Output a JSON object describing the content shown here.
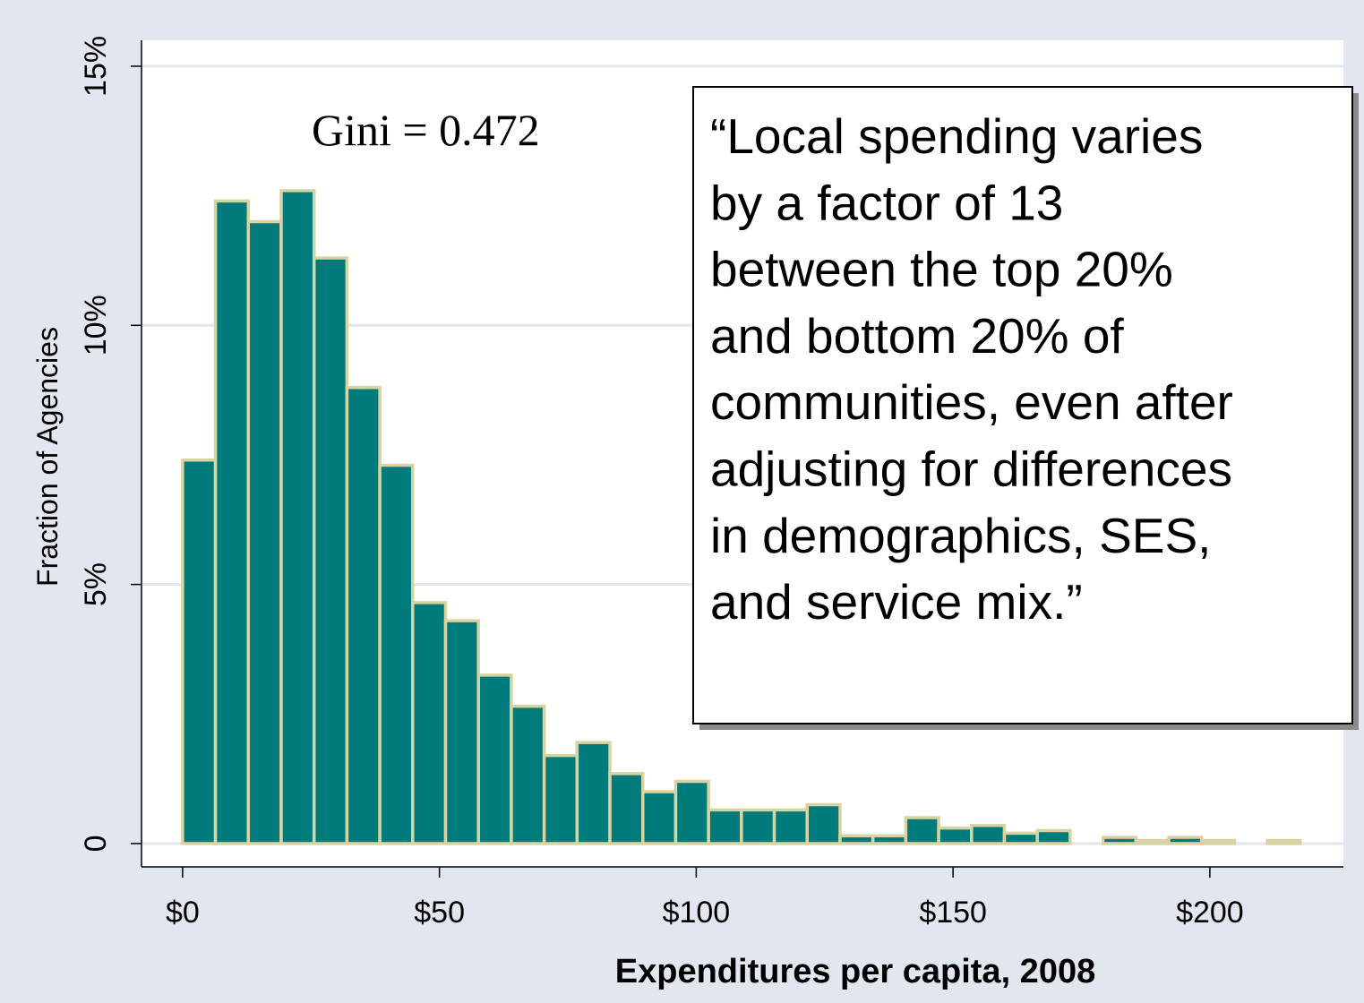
{
  "chart_data": {
    "type": "bar",
    "xlabel": "Expenditures per capita, 2008",
    "ylabel": "Fraction of Agencies",
    "xlim": [
      -8,
      226
    ],
    "ylim": [
      -0.45,
      15.5
    ],
    "x_ticks": [
      {
        "value": 0,
        "label": "$0"
      },
      {
        "value": 50,
        "label": "$50"
      },
      {
        "value": 100,
        "label": "$100"
      },
      {
        "value": 150,
        "label": "$150"
      },
      {
        "value": 200,
        "label": "$200"
      }
    ],
    "y_ticks": [
      {
        "value": 0,
        "label": "0"
      },
      {
        "value": 5,
        "label": "5%"
      },
      {
        "value": 10,
        "label": "10%"
      },
      {
        "value": 15,
        "label": "15%"
      }
    ],
    "grid": true,
    "bin_width": 6.4,
    "bins": [
      {
        "x0": 0.0,
        "y": 7.4
      },
      {
        "x0": 6.4,
        "y": 12.4
      },
      {
        "x0": 12.8,
        "y": 12.0
      },
      {
        "x0": 19.2,
        "y": 12.6
      },
      {
        "x0": 25.6,
        "y": 11.3
      },
      {
        "x0": 32.0,
        "y": 8.8
      },
      {
        "x0": 38.4,
        "y": 7.3
      },
      {
        "x0": 44.8,
        "y": 4.65
      },
      {
        "x0": 51.2,
        "y": 4.3
      },
      {
        "x0": 57.6,
        "y": 3.25
      },
      {
        "x0": 64.0,
        "y": 2.65
      },
      {
        "x0": 70.4,
        "y": 1.7
      },
      {
        "x0": 76.8,
        "y": 1.95
      },
      {
        "x0": 83.2,
        "y": 1.35
      },
      {
        "x0": 89.6,
        "y": 1.0
      },
      {
        "x0": 96.0,
        "y": 1.2
      },
      {
        "x0": 102.4,
        "y": 0.65
      },
      {
        "x0": 108.8,
        "y": 0.65
      },
      {
        "x0": 115.2,
        "y": 0.65
      },
      {
        "x0": 121.6,
        "y": 0.75
      },
      {
        "x0": 128.0,
        "y": 0.15
      },
      {
        "x0": 134.4,
        "y": 0.15
      },
      {
        "x0": 140.8,
        "y": 0.5
      },
      {
        "x0": 147.2,
        "y": 0.3
      },
      {
        "x0": 153.6,
        "y": 0.35
      },
      {
        "x0": 160.0,
        "y": 0.2
      },
      {
        "x0": 166.4,
        "y": 0.25
      },
      {
        "x0": 179.2,
        "y": 0.12
      },
      {
        "x0": 185.6,
        "y": 0.06
      },
      {
        "x0": 192.0,
        "y": 0.12
      },
      {
        "x0": 198.4,
        "y": 0.06
      },
      {
        "x0": 211.2,
        "y": 0.06
      }
    ],
    "colors": {
      "bar_fill": "#007b7b",
      "bar_outline": "#d9d3a2",
      "background": "#e2e6ef",
      "plot_area": "#ffffff",
      "gridline": "#e2e6ef"
    },
    "annotations": {
      "gini": "Gini = 0.472",
      "callout_lines": [
        "“Local spending varies",
        "by a factor of 13",
        "between the top 20%",
        "and bottom 20% of",
        "communities, even after",
        "adjusting for  differences",
        "in demographics, SES,",
        "and service mix.”"
      ]
    }
  }
}
